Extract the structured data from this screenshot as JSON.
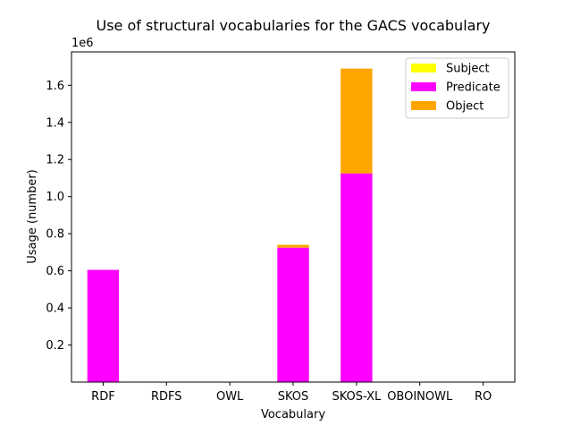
{
  "chart_data": {
    "type": "bar",
    "stacked": true,
    "title": "Use of structural vocabularies for the GACS vocabulary",
    "xlabel": "Vocabulary",
    "ylabel": "Usage (number)",
    "y_offset_label": "1e6",
    "y_multiplier": 1000000,
    "categories": [
      "RDF",
      "RDFS",
      "OWL",
      "SKOS",
      "SKOS-XL",
      "OBOINOWL",
      "RO"
    ],
    "yticks": [
      0.2,
      0.4,
      0.6,
      0.8,
      1.0,
      1.2,
      1.4,
      1.6
    ],
    "ylim": [
      0,
      1.78
    ],
    "series": [
      {
        "name": "Subject",
        "color": "#ffff00",
        "values": [
          0,
          0,
          0,
          0,
          0,
          0,
          0
        ]
      },
      {
        "name": "Predicate",
        "color": "#ff00ff",
        "values": [
          0.605,
          0,
          0,
          0.725,
          1.125,
          0,
          0
        ]
      },
      {
        "name": "Object",
        "color": "#ffa500",
        "values": [
          0,
          0,
          0,
          0.015,
          0.565,
          0,
          0
        ]
      }
    ],
    "legend_position": "top-right",
    "grid": false
  }
}
